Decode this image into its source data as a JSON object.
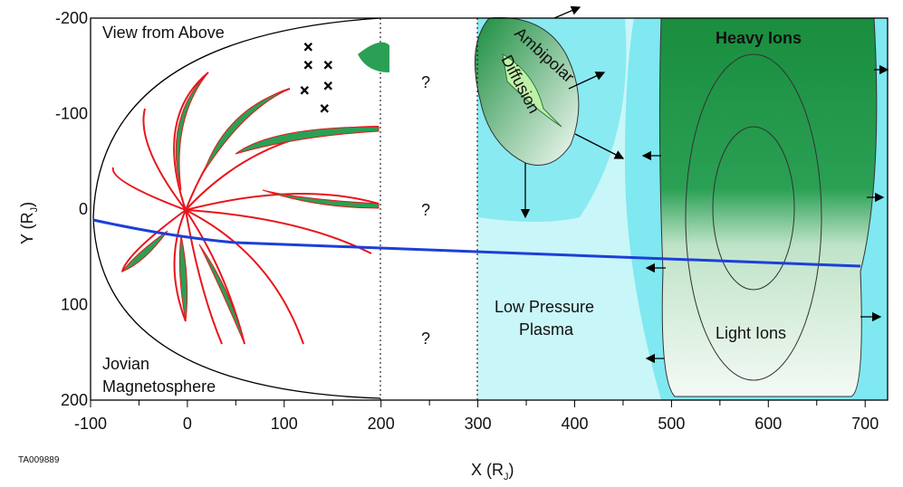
{
  "title": "View from Above",
  "regions": {
    "heavy_ions": "Heavy Ions",
    "light_ions": "Light Ions",
    "ambipolar": "Ambipolar",
    "diffusion": "Diffusion",
    "low_pressure": [
      "Low Pressure",
      "Plasma"
    ],
    "magnetosphere": [
      "Jovian",
      "Magnetosphere"
    ],
    "unknown": [
      "?",
      "?",
      "?"
    ]
  },
  "x_axis": {
    "label": "X (R",
    "sub": "J",
    "close": ")",
    "ticks": [
      -100,
      0,
      100,
      200,
      300,
      400,
      500,
      600,
      700
    ]
  },
  "y_axis": {
    "label": "Y (R",
    "sub": "J",
    "close": ")",
    "ticks": [
      -200,
      -100,
      0,
      100,
      200
    ]
  },
  "figure_id": "TA009889"
}
